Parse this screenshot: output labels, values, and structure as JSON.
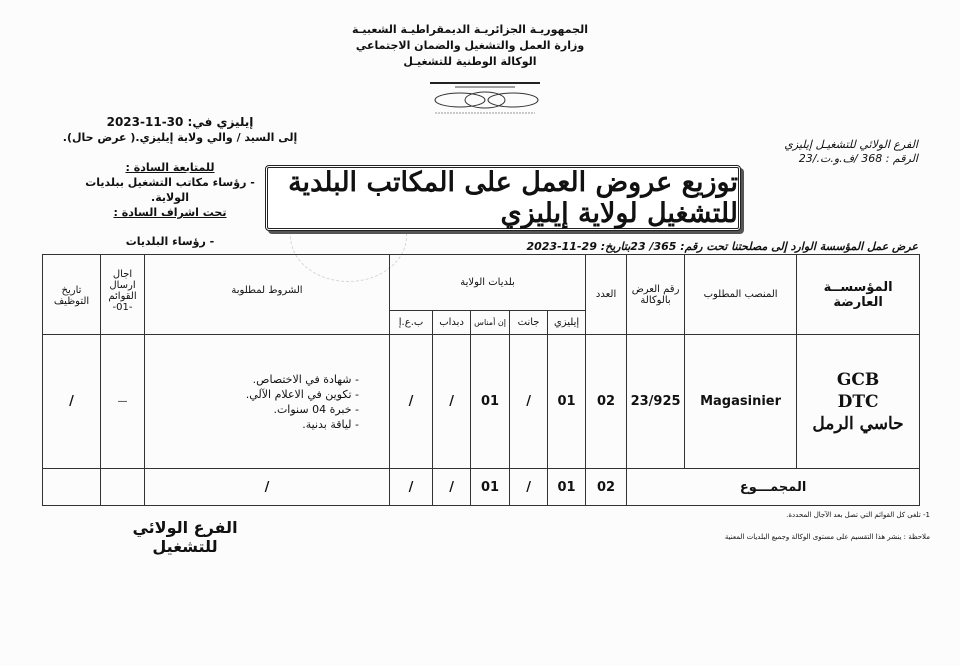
{
  "header": {
    "lines": [
      "الجمهوريـة الجزائريـة الديمقراطيـة الشعبيـة",
      "وزارة العمل والتشغيل والضمان الاجتماعي",
      "الوكالة الوطنية للتشغيـل"
    ]
  },
  "sender": {
    "branch": "الفرع الولائي للتشغيـل إيليزي",
    "ref": "الرقم :  368  /ف.و.ت./23"
  },
  "place_date": "إيليزي في: 30-11-2023",
  "recipient": "إلى السيد / والي ولاية إيليزي.( عرض حال).",
  "follow_up": {
    "label": "للمتابعة السادة :",
    "item": "- رؤساء مكاتب التشغيل ببلديات الولاية.",
    "supervision_label": "تحت اشراف السادة :",
    "supervision_item": "- رؤساء البلديات"
  },
  "title": "توزيع عروض العمل على المكاتب البلدية للتشغيل لولاية إيليزي",
  "subtitle": "عرض عمل المؤسسة الوارد إلى مصلحتنا تحت رقم: 365/ 23بتاريخ: 29-11-2023",
  "table": {
    "headers": {
      "entity": "المؤسســة العارضة",
      "post": "المنصب المطلوب",
      "offer_no": "رقم العرض بالوكالة",
      "count": "العدد",
      "communes": "بلديات الولاية",
      "commune_names": [
        "إيليزي",
        "جانت",
        "إن أمناس",
        "دبداب",
        "ب.ع.إ"
      ],
      "conditions": "الشروط لمطلوبة",
      "deadline": "اجال ارسال القوائم -01-",
      "hire_date": "تاريخ التوظيف"
    },
    "row": {
      "entity": [
        "GCB",
        "DTC",
        "حاسي الرمل"
      ],
      "post": "Magasinier",
      "offer_no": "23/925",
      "count": "02",
      "communes": [
        "01",
        "/",
        "01",
        "/",
        "/"
      ],
      "conditions": [
        "شهادة في الاختصاص.",
        "تكوين في الاعلام الآلي.",
        "خبرة 04 سنوات.",
        "لياقة بدنية."
      ],
      "deadline": "—",
      "hire_date": "/"
    },
    "total": {
      "label": "المجمـــوع",
      "count": "02",
      "communes": [
        "01",
        "/",
        "01",
        "/",
        "/"
      ],
      "conditions": "/"
    }
  },
  "footnote": "1- تلغى كل القوائم التي تصل بعد الآجال المحددة.",
  "note": "ملاحظة : ينشر هذا التقسيم على مستوى الوكالة وجميع البلديات المعنية",
  "signature": "الفرع الولائي للتشغيل"
}
